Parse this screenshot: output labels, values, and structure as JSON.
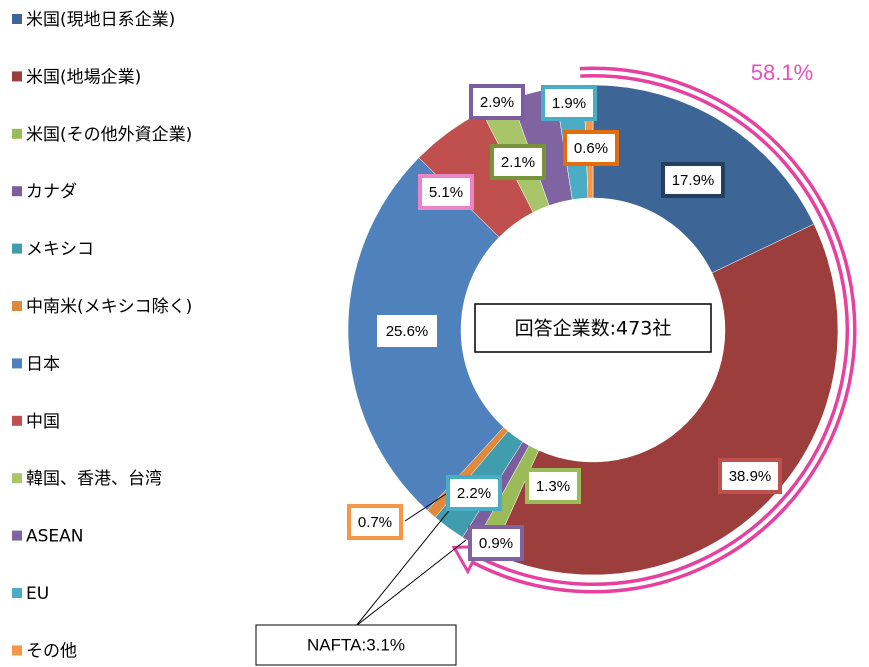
{
  "chart_data": {
    "type": "donut",
    "categories": [
      "米国(現地日系企業)",
      "米国(地場企業)",
      "米国(その他外資企業)",
      "カナダ",
      "メキシコ",
      "中南米(メキシコ除く)",
      "日本",
      "中国",
      "韓国、香港、台湾",
      "ASEAN",
      "EU",
      "その他"
    ],
    "values": [
      17.9,
      38.9,
      1.3,
      0.9,
      2.2,
      0.7,
      25.6,
      5.1,
      2.1,
      2.9,
      1.9,
      0.6
    ],
    "value_labels": [
      "17.9%",
      "38.9%",
      "1.3%",
      "0.9%",
      "2.2%",
      "0.7%",
      "25.6%",
      "5.1%",
      "2.1%",
      "2.9%",
      "1.9%",
      "0.6%"
    ],
    "colors": [
      "#3d6697",
      "#9c3e3b",
      "#9bbb59",
      "#7c5d9d",
      "#3f9dae",
      "#e0893c",
      "#4f81bd",
      "#c0504d",
      "#a9c56a",
      "#8064a2",
      "#4bacc6",
      "#f79646"
    ],
    "label_borders": [
      "#243f60",
      "#c0504d",
      "#9bbb59",
      "#8064a2",
      "#4bacc6",
      "#f79646",
      null,
      "#e984c6",
      "#77933c",
      "#7c5d9d",
      "#4bacc6",
      "#e46c0a"
    ],
    "annotations": {
      "us_share": "58.1%",
      "respondents": "回答企業数:473社",
      "nafta": "NAFTA:3.1%"
    }
  }
}
